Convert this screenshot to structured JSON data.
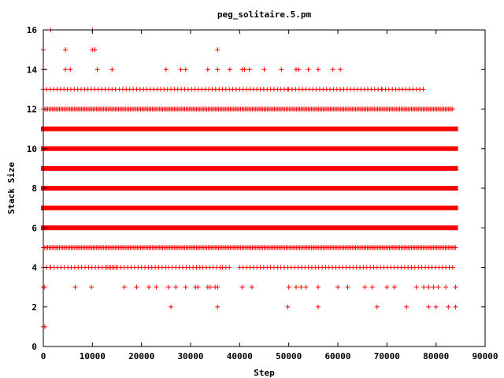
{
  "chart_data": {
    "type": "scatter",
    "title": "peg_solitaire.5.pm",
    "xlabel": "Step",
    "ylabel": "Stack Size",
    "xlim": [
      0,
      90000
    ],
    "ylim": [
      0,
      16
    ],
    "xticks": [
      0,
      10000,
      20000,
      30000,
      40000,
      50000,
      60000,
      70000,
      80000,
      90000
    ],
    "yticks": [
      0,
      2,
      4,
      6,
      8,
      10,
      12,
      14,
      16
    ],
    "grid": false,
    "legend": "none",
    "marker": "+",
    "color": "#ff0000",
    "series": [
      {
        "values_note": "dense plus-marker point clouds per stack size",
        "bands": [
          {
            "y": 1,
            "ranges": [
              [
                0,
                300
              ]
            ],
            "density": "single"
          },
          {
            "y": 2,
            "ranges": [
              [
                26000,
                26000
              ],
              [
                35500,
                35500
              ],
              [
                49800,
                49800
              ],
              [
                56000,
                56000
              ],
              [
                68000,
                68000
              ],
              [
                74000,
                74000
              ],
              [
                78500,
                78500
              ],
              [
                80000,
                80000
              ],
              [
                82500,
                84000
              ]
            ],
            "density": "sparse"
          },
          {
            "y": 3,
            "ranges": [
              [
                0,
                200
              ],
              [
                6500,
                6500
              ],
              [
                9800,
                9800
              ],
              [
                16500,
                16500
              ],
              [
                19000,
                19000
              ],
              [
                21500,
                23000
              ],
              [
                25500,
                27000
              ],
              [
                29000,
                29000
              ],
              [
                31000,
                31500
              ],
              [
                33500,
                34000
              ],
              [
                35000,
                35500
              ],
              [
                40500,
                40500
              ],
              [
                42500,
                50000
              ],
              [
                51500,
                52500
              ],
              [
                53500,
                56000
              ],
              [
                60000,
                60000
              ],
              [
                62000,
                65500
              ],
              [
                67000,
                70000
              ],
              [
                71500,
                76000
              ],
              [
                77500,
                78500
              ],
              [
                79500,
                80500
              ],
              [
                82000,
                84000
              ]
            ],
            "density": "sparse"
          },
          {
            "y": 4,
            "ranges": [
              [
                0,
                1500
              ],
              [
                1500,
                15000
              ],
              [
                13000,
                32000
              ],
              [
                32500,
                36500
              ],
              [
                36500,
                38000
              ],
              [
                40000,
                84000
              ]
            ],
            "density": "medium"
          },
          {
            "y": 5,
            "ranges": [
              [
                0,
                84000
              ]
            ],
            "density": "dense"
          },
          {
            "y": 6,
            "ranges": [
              [
                0,
                84000
              ]
            ],
            "density": "solid"
          },
          {
            "y": 7,
            "ranges": [
              [
                0,
                84000
              ]
            ],
            "density": "solid"
          },
          {
            "y": 8,
            "ranges": [
              [
                0,
                84000
              ]
            ],
            "density": "solid"
          },
          {
            "y": 9,
            "ranges": [
              [
                0,
                84000
              ]
            ],
            "density": "solid"
          },
          {
            "y": 10,
            "ranges": [
              [
                0,
                84000
              ]
            ],
            "density": "solid"
          },
          {
            "y": 11,
            "ranges": [
              [
                0,
                84000
              ]
            ],
            "density": "solid"
          },
          {
            "y": 12,
            "ranges": [
              [
                0,
                83500
              ]
            ],
            "density": "dense"
          },
          {
            "y": 13,
            "ranges": [
              [
                0,
                15000
              ],
              [
                15500,
                50000
              ],
              [
                50000,
                69000
              ],
              [
                69000,
                78000
              ]
            ],
            "density": "medium"
          },
          {
            "y": 14,
            "ranges": [
              [
                0,
                4500
              ],
              [
                5500,
                11000
              ],
              [
                14000,
                14000
              ],
              [
                25000,
                28000
              ],
              [
                29000,
                33500
              ],
              [
                35500,
                38000
              ],
              [
                40500,
                41000
              ],
              [
                42000,
                42000
              ],
              [
                45000,
                45000
              ],
              [
                48500,
                48500
              ],
              [
                51500,
                52000
              ],
              [
                54000,
                54000
              ],
              [
                56000,
                56000
              ],
              [
                59000,
                60500
              ]
            ],
            "density": "sparse"
          },
          {
            "y": 15,
            "ranges": [
              [
                0,
                4500
              ],
              [
                10000,
                10500
              ],
              [
                35500,
                35500
              ]
            ],
            "density": "sparse"
          },
          {
            "y": 16,
            "ranges": [
              [
                1500,
                1500
              ],
              [
                10000,
                10000
              ]
            ],
            "density": "single"
          }
        ]
      }
    ]
  }
}
